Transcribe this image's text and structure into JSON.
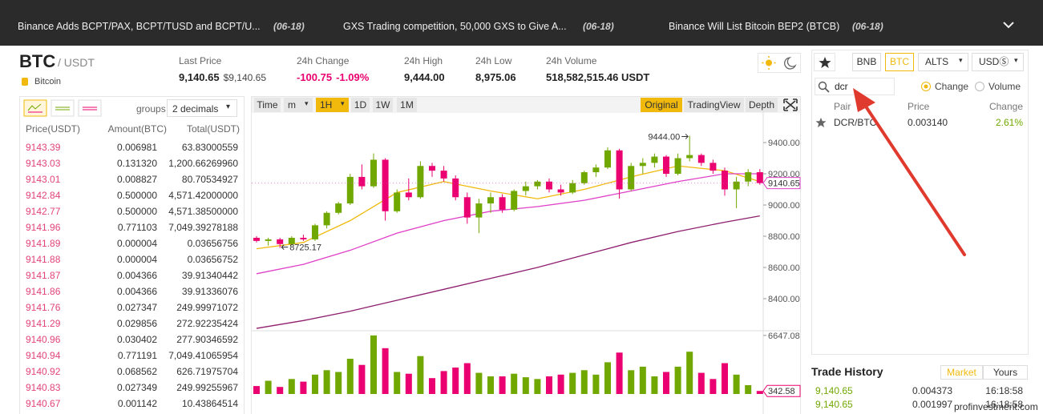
{
  "ticker": [
    {
      "text": "Binance Adds BCPT/PAX, BCPT/TUSD and BCPT/U...",
      "date": "(06-18)"
    },
    {
      "text": "GXS Trading competition, 50,000 GXS to Give A...",
      "date": "(06-18)"
    },
    {
      "text": "Binance Will List Bitcoin BEP2 (BTCB)",
      "date": "(06-18)"
    }
  ],
  "header": {
    "symbol": "BTC",
    "quote": "/ USDT",
    "name": "Bitcoin",
    "stats": [
      {
        "label": "Last Price",
        "value": "9,140.65",
        "sub": "$9,140.65"
      },
      {
        "label": "24h Change",
        "value": "-100.75",
        "sub": "-1.09%"
      },
      {
        "label": "24h High",
        "value": "9,444.00"
      },
      {
        "label": "24h Low",
        "value": "8,975.06"
      },
      {
        "label": "24h Volume",
        "value": "518,582,515.46 USDT"
      }
    ]
  },
  "order_book": {
    "groups_label": "groups",
    "groups_value": "2 decimals",
    "columns": [
      "Price(USDT)",
      "Amount(BTC)",
      "Total(USDT)"
    ],
    "rows": [
      [
        "9143.39",
        "0.006981",
        "63.83000559"
      ],
      [
        "9143.03",
        "0.131320",
        "1,200.66269960"
      ],
      [
        "9143.01",
        "0.008827",
        "80.70534927"
      ],
      [
        "9142.84",
        "0.500000",
        "4,571.42000000"
      ],
      [
        "9142.77",
        "0.500000",
        "4,571.38500000"
      ],
      [
        "9141.96",
        "0.771103",
        "7,049.39278188"
      ],
      [
        "9141.89",
        "0.000004",
        "0.03656756"
      ],
      [
        "9141.88",
        "0.000004",
        "0.03656752"
      ],
      [
        "9141.87",
        "0.004366",
        "39.91340442"
      ],
      [
        "9141.86",
        "0.004366",
        "39.91336076"
      ],
      [
        "9141.76",
        "0.027347",
        "249.99971072"
      ],
      [
        "9141.29",
        "0.029856",
        "272.92235424"
      ],
      [
        "9140.96",
        "0.030402",
        "277.90346592"
      ],
      [
        "9140.94",
        "0.771191",
        "7,049.41065954"
      ],
      [
        "9140.92",
        "0.068562",
        "626.71975704"
      ],
      [
        "9140.83",
        "0.027349",
        "249.99255967"
      ],
      [
        "9140.67",
        "0.001142",
        "10.43864514"
      ]
    ]
  },
  "chart": {
    "toolbar_left": [
      "Time",
      "m",
      "1H",
      "1D",
      "1W",
      "1M"
    ],
    "toolbar_right": [
      "Original",
      "TradingView",
      "Depth"
    ],
    "ylim": [
      8200,
      9595
    ],
    "yticks": [
      {
        "value": 8400,
        "label": "8400.00"
      },
      {
        "value": 8600,
        "label": "8600.00"
      },
      {
        "value": 8800,
        "label": "8800.00"
      },
      {
        "value": 9000,
        "label": "9000.00"
      },
      {
        "value": 9200,
        "label": "9200.00"
      },
      {
        "value": 9400,
        "label": "9400.00"
      }
    ],
    "up_color": "#70a800",
    "down_color": "#ea0070",
    "last_price": 9140.65,
    "annotations": [
      {
        "value": 9444,
        "label": "9444.00"
      },
      {
        "value": 8725.17,
        "label": "8725.17"
      }
    ],
    "candles": [
      [
        8790,
        8800,
        8760,
        8770
      ],
      [
        8770,
        8790,
        8740,
        8780
      ],
      [
        8780,
        8790,
        8725.17,
        8750
      ],
      [
        8750,
        8800,
        8740,
        8790
      ],
      [
        8790,
        8810,
        8770,
        8780
      ],
      [
        8780,
        8880,
        8770,
        8870
      ],
      [
        8870,
        8960,
        8850,
        8950
      ],
      [
        8950,
        9020,
        8940,
        9010
      ],
      [
        9010,
        9200,
        9000,
        9180
      ],
      [
        9180,
        9260,
        9100,
        9120
      ],
      [
        9120,
        9330,
        9110,
        9290
      ],
      [
        9290,
        9300,
        8900,
        8960
      ],
      [
        8960,
        9100,
        8950,
        9080
      ],
      [
        9080,
        9170,
        9030,
        9050
      ],
      [
        9050,
        9280,
        9040,
        9250
      ],
      [
        9250,
        9270,
        9180,
        9220
      ],
      [
        9220,
        9250,
        9150,
        9170
      ],
      [
        9170,
        9190,
        9030,
        9050
      ],
      [
        9050,
        9080,
        8880,
        8920
      ],
      [
        8920,
        9040,
        8820,
        9010
      ],
      [
        9010,
        9080,
        8950,
        9050
      ],
      [
        9050,
        9070,
        8950,
        8970
      ],
      [
        8970,
        9100,
        8960,
        9090
      ],
      [
        9090,
        9150,
        9060,
        9120
      ],
      [
        9120,
        9160,
        9100,
        9150
      ],
      [
        9150,
        9170,
        9080,
        9100
      ],
      [
        9100,
        9130,
        9060,
        9080
      ],
      [
        9080,
        9160,
        9070,
        9140
      ],
      [
        9140,
        9220,
        9130,
        9210
      ],
      [
        9210,
        9260,
        9180,
        9240
      ],
      [
        9240,
        9370,
        9230,
        9350
      ],
      [
        9350,
        9360,
        9040,
        9100
      ],
      [
        9100,
        9270,
        9090,
        9250
      ],
      [
        9250,
        9300,
        9200,
        9270
      ],
      [
        9270,
        9330,
        9240,
        9310
      ],
      [
        9310,
        9320,
        9180,
        9200
      ],
      [
        9200,
        9330,
        9190,
        9300
      ],
      [
        9300,
        9444,
        9280,
        9320
      ],
      [
        9320,
        9330,
        9250,
        9270
      ],
      [
        9270,
        9290,
        9200,
        9220
      ],
      [
        9220,
        9240,
        9060,
        9100
      ],
      [
        9100,
        9180,
        8980,
        9150
      ],
      [
        9150,
        9230,
        9120,
        9210
      ],
      [
        9210,
        9230,
        9130,
        9140.65
      ]
    ],
    "ma_lines": [
      {
        "color": "#f0b90b",
        "x": [
          0,
          4,
          8,
          12,
          16,
          20,
          24,
          28,
          32,
          36,
          40,
          43
        ],
        "values": [
          8720,
          8760,
          8900,
          9080,
          9150,
          9090,
          9040,
          9100,
          9180,
          9250,
          9220,
          9150
        ]
      },
      {
        "color": "#e040c8",
        "x": [
          0,
          4,
          8,
          12,
          16,
          20,
          24,
          28,
          32,
          36,
          40,
          43
        ],
        "values": [
          8560,
          8620,
          8710,
          8820,
          8900,
          8960,
          8990,
          9030,
          9090,
          9150,
          9200,
          9200
        ]
      },
      {
        "color": "#8e1e6e",
        "x": [
          0,
          4,
          8,
          12,
          16,
          20,
          24,
          28,
          32,
          36,
          40,
          43
        ],
        "values": [
          8210,
          8260,
          8320,
          8390,
          8460,
          8530,
          8600,
          8680,
          8760,
          8830,
          8890,
          8930
        ]
      }
    ],
    "volume_ylim": [
      0,
      7000
    ],
    "volume_ticks": [
      6647.08
    ],
    "last_volume": 342.58,
    "volumes": [
      900,
      1500,
      800,
      1700,
      1400,
      2200,
      2700,
      2500,
      4000,
      3300,
      6647.08,
      5200,
      2500,
      2300,
      4300,
      1800,
      2600,
      3000,
      3500,
      2400,
      2000,
      2000,
      2300,
      1900,
      1700,
      2000,
      2200,
      2400,
      2700,
      2200,
      3600,
      4700,
      2700,
      3100,
      2000,
      2500,
      3100,
      4800,
      2400,
      1700,
      3500,
      2200,
      1000,
      342.58
    ]
  },
  "markets": {
    "tabs": [
      "BNB",
      "BTC",
      "ALTS",
      "USDⓈ"
    ],
    "search": "dcr",
    "sort_options": [
      "Change",
      "Volume"
    ],
    "columns": [
      "Pair",
      "Price",
      "Change"
    ],
    "rows": [
      {
        "pair": "DCR/BTC",
        "price": "0.003140",
        "change": "2.61%"
      }
    ]
  },
  "trade_history": {
    "title": "Trade History",
    "tabs": [
      "Market",
      "Yours"
    ],
    "rows": [
      [
        "9,140.65",
        "0.004373",
        "16:18:58"
      ],
      [
        "9,140.65",
        "0.001997",
        "16:18:58"
      ]
    ]
  },
  "watermark": "profinvestment.com"
}
